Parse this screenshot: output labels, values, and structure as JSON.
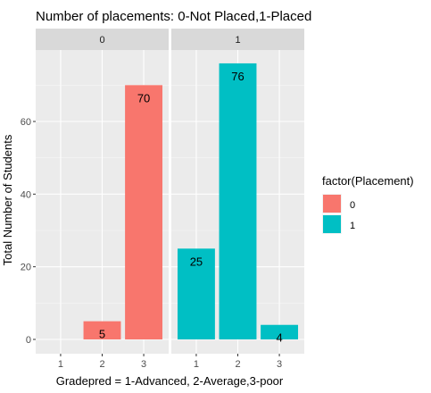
{
  "chart_data": {
    "type": "bar",
    "title": "Number of placements: 0-Not Placed,1-Placed",
    "xlabel": "Gradepred = 1-Advanced, 2-Average,3-poor",
    "ylabel": "Total Number of Students",
    "categories": [
      "1",
      "2",
      "3"
    ],
    "ylim": [
      0,
      80
    ],
    "yticks": [
      0,
      20,
      40,
      60
    ],
    "grid": true,
    "legend": {
      "title": "factor(Placement)",
      "placement": "right",
      "entries": [
        {
          "label": "0",
          "color": "#F8766D"
        },
        {
          "label": "1",
          "color": "#00BFC4"
        }
      ]
    },
    "panels": [
      {
        "label": "0",
        "color": "#F8766D",
        "values": [
          0,
          5,
          70
        ],
        "data_labels": [
          "",
          "5",
          "70"
        ]
      },
      {
        "label": "1",
        "color": "#00BFC4",
        "values": [
          25,
          76,
          4
        ],
        "data_labels": [
          "25",
          "76",
          "4"
        ]
      }
    ]
  }
}
